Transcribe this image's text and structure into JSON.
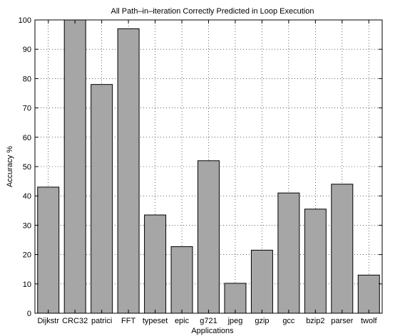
{
  "chart_data": {
    "type": "bar",
    "title": "All Path–in–iteration Correctly Predicted in Loop Execution",
    "xlabel": "Applications",
    "ylabel": "Accuracy %",
    "categories": [
      "Dijkstr",
      "CRC32",
      "patrici",
      "FFT",
      "typeset",
      "epic",
      "g721",
      "jpeg",
      "gzip",
      "gcc",
      "bzip2",
      "parser",
      "twolf"
    ],
    "values": [
      43,
      100,
      78,
      97,
      33.5,
      22.7,
      52,
      10.2,
      21.5,
      41,
      35.5,
      44,
      13
    ],
    "ylim": [
      0,
      100
    ],
    "yticks": [
      0,
      10,
      20,
      30,
      40,
      50,
      60,
      70,
      80,
      90,
      100
    ],
    "grid": true,
    "colors": {
      "bar_fill": "#a6a6a6",
      "bar_stroke": "#000000",
      "grid": "#000000"
    }
  }
}
